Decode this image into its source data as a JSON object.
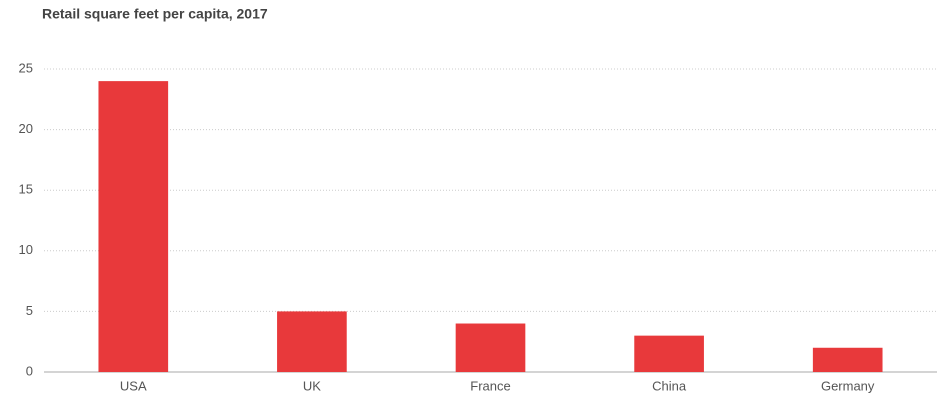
{
  "chart_data": {
    "type": "bar",
    "title": "Retail square feet per capita, 2017",
    "categories": [
      "USA",
      "UK",
      "France",
      "China",
      "Germany"
    ],
    "values": [
      24,
      5,
      4,
      3,
      2
    ],
    "color": "#e8393b",
    "ylim": [
      0,
      25
    ],
    "yticks": [
      0,
      5,
      10,
      15,
      20,
      25
    ],
    "grid": true
  }
}
